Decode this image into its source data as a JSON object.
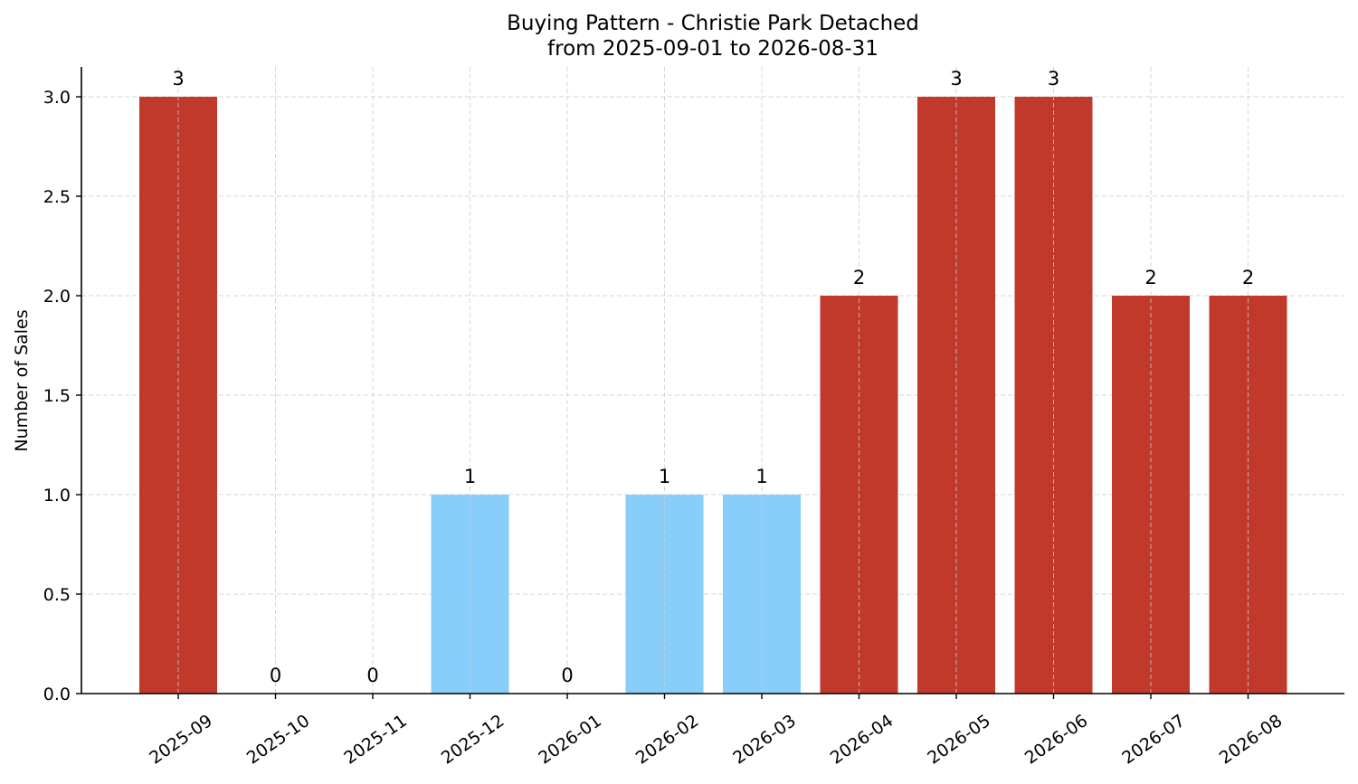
{
  "chart_data": {
    "type": "bar",
    "title": "Buying Pattern - Christie Park Detached",
    "subtitle": "from 2025-09-01 to 2026-08-31",
    "xlabel": "",
    "ylabel": "Number of Sales",
    "categories": [
      "2025-09",
      "2025-10",
      "2025-11",
      "2025-12",
      "2026-01",
      "2026-02",
      "2026-03",
      "2026-04",
      "2026-05",
      "2026-06",
      "2026-07",
      "2026-08"
    ],
    "values": [
      3,
      0,
      0,
      1,
      0,
      1,
      1,
      2,
      3,
      3,
      2,
      2
    ],
    "data_labels": [
      "3",
      "0",
      "0",
      "1",
      "0",
      "1",
      "1",
      "2",
      "3",
      "3",
      "2",
      "2"
    ],
    "bar_colors": [
      "#c0392b",
      "#87cefa",
      "#87cefa",
      "#87cefa",
      "#87cefa",
      "#87cefa",
      "#87cefa",
      "#c0392b",
      "#c0392b",
      "#c0392b",
      "#c0392b",
      "#c0392b"
    ],
    "ylim": [
      0,
      3.15
    ],
    "yticks": [
      0,
      0.5,
      1,
      1.5,
      2,
      2.5,
      3
    ],
    "ytick_labels": [
      "0.0",
      "0.5",
      "1.0",
      "1.5",
      "2.0",
      "2.5",
      "3.0"
    ],
    "grid": true,
    "legend": "none"
  }
}
